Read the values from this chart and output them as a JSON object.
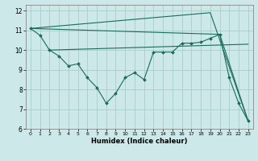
{
  "background_color": "#cce8e8",
  "grid_color": "#aacccc",
  "line_color": "#1a6b5a",
  "xlabel": "Humidex (Indice chaleur)",
  "xlim": [
    -0.5,
    23.5
  ],
  "ylim": [
    6,
    12.3
  ],
  "xticks": [
    0,
    1,
    2,
    3,
    4,
    5,
    6,
    7,
    8,
    9,
    10,
    11,
    12,
    13,
    14,
    15,
    16,
    17,
    18,
    19,
    20,
    21,
    22,
    23
  ],
  "yticks": [
    6,
    7,
    8,
    9,
    10,
    11,
    12
  ],
  "main_line": {
    "x": [
      0,
      1,
      2,
      3,
      4,
      5,
      6,
      7,
      8,
      9,
      10,
      11,
      12,
      13,
      14,
      15,
      16,
      17,
      18,
      19,
      20,
      21,
      22,
      23
    ],
    "y": [
      11.1,
      10.75,
      10.0,
      9.7,
      9.2,
      9.3,
      8.6,
      8.1,
      7.3,
      7.8,
      8.6,
      8.85,
      8.5,
      9.9,
      9.9,
      9.9,
      10.35,
      10.35,
      10.4,
      10.6,
      10.8,
      8.6,
      7.3,
      6.4
    ]
  },
  "straight_line1": {
    "x": [
      0,
      19,
      23
    ],
    "y": [
      11.1,
      11.9,
      6.4
    ]
  },
  "straight_line2": {
    "x": [
      0,
      20,
      23
    ],
    "y": [
      11.1,
      10.8,
      6.4
    ]
  },
  "straight_line3": {
    "x": [
      2,
      23
    ],
    "y": [
      10.0,
      10.3
    ]
  }
}
